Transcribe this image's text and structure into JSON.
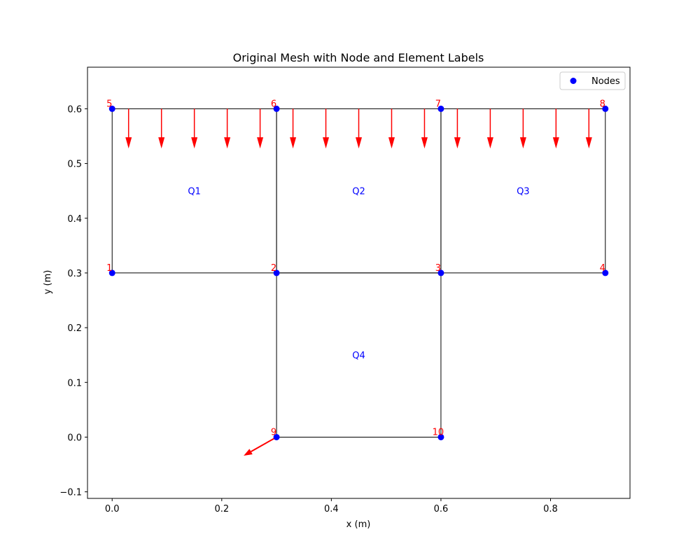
{
  "chart_data": {
    "type": "scatter",
    "title": "Original Mesh with Node and Element Labels",
    "xlabel": "x (m)",
    "ylabel": "y (m)",
    "xlim": [
      -0.045,
      0.945
    ],
    "ylim": [
      -0.112,
      0.676
    ],
    "xticks": [
      0.0,
      0.2,
      0.4,
      0.6,
      0.8
    ],
    "xtick_labels": [
      "0.0",
      "0.2",
      "0.4",
      "0.6",
      "0.8"
    ],
    "yticks": [
      -0.1,
      0.0,
      0.1,
      0.2,
      0.3,
      0.4,
      0.5,
      0.6
    ],
    "ytick_labels": [
      "−0.1",
      "0.0",
      "0.1",
      "0.2",
      "0.3",
      "0.4",
      "0.5",
      "0.6"
    ],
    "grid": false,
    "legend": {
      "position": "top-right",
      "entries": [
        {
          "label": "Nodes",
          "color": "#0000ff",
          "marker": "circle"
        }
      ]
    },
    "nodes": [
      {
        "id": "1",
        "x": 0.0,
        "y": 0.3
      },
      {
        "id": "2",
        "x": 0.3,
        "y": 0.3
      },
      {
        "id": "3",
        "x": 0.6,
        "y": 0.3
      },
      {
        "id": "4",
        "x": 0.9,
        "y": 0.3
      },
      {
        "id": "5",
        "x": 0.0,
        "y": 0.6
      },
      {
        "id": "6",
        "x": 0.3,
        "y": 0.6
      },
      {
        "id": "7",
        "x": 0.6,
        "y": 0.6
      },
      {
        "id": "8",
        "x": 0.9,
        "y": 0.6
      },
      {
        "id": "9",
        "x": 0.3,
        "y": 0.0
      },
      {
        "id": "10",
        "x": 0.6,
        "y": 0.0
      }
    ],
    "elements": [
      {
        "label": "Q1",
        "nodes": [
          "1",
          "2",
          "6",
          "5"
        ],
        "label_x": 0.15,
        "label_y": 0.45
      },
      {
        "label": "Q2",
        "nodes": [
          "2",
          "3",
          "7",
          "6"
        ],
        "label_x": 0.45,
        "label_y": 0.45
      },
      {
        "label": "Q3",
        "nodes": [
          "3",
          "4",
          "8",
          "7"
        ],
        "label_x": 0.75,
        "label_y": 0.45
      },
      {
        "label": "Q4",
        "nodes": [
          "9",
          "10",
          "3",
          "2"
        ],
        "label_x": 0.45,
        "label_y": 0.15
      }
    ],
    "distributed_load": {
      "y_top": 0.6,
      "y_tip": 0.53,
      "x_positions": [
        0.03,
        0.09,
        0.15,
        0.21,
        0.27,
        0.33,
        0.39,
        0.45,
        0.51,
        0.57,
        0.63,
        0.69,
        0.75,
        0.81,
        0.87
      ]
    },
    "point_load": {
      "x_start": 0.3,
      "y_start": 0.0,
      "x_end": 0.24,
      "y_end": -0.034
    },
    "colors": {
      "node": "#0000ff",
      "node_label": "#ff0000",
      "element_label": "#0000ff",
      "edge": "#000000",
      "load": "#ff0000"
    }
  }
}
